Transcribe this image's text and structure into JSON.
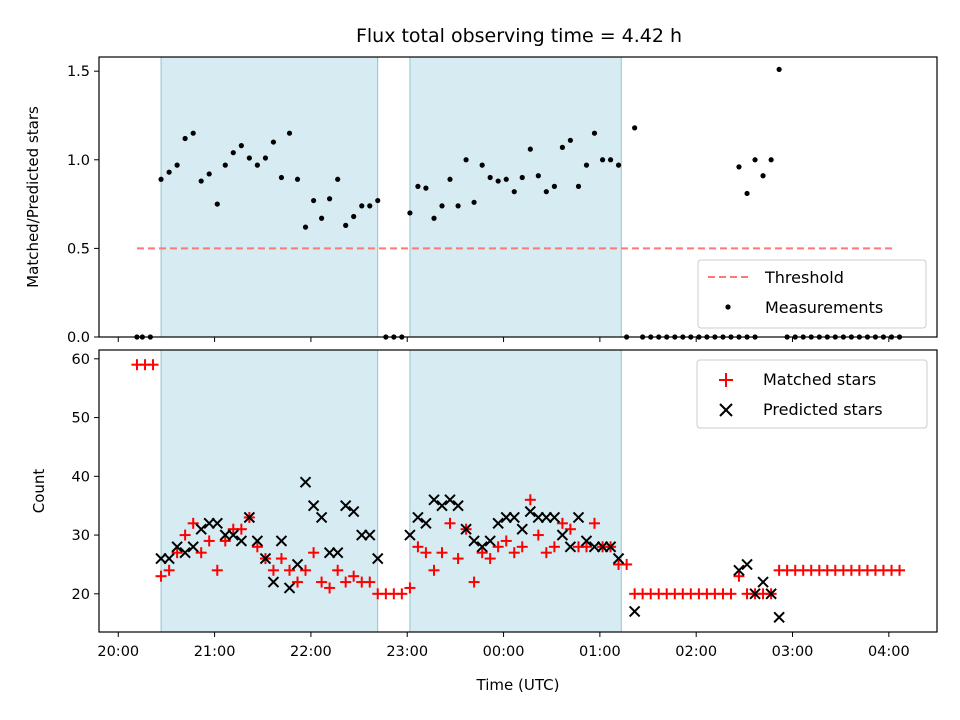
{
  "chart_data": [
    {
      "type": "scatter",
      "title": "Flux total observing time = 4.42 h",
      "ylabel": "Matched/Predicted stars",
      "xlabel": "",
      "ylim": [
        0,
        1.58
      ],
      "yticks": [
        "0.0",
        "0.5",
        "1.0",
        "1.5"
      ],
      "x_unit": "hours since 20:00 UTC",
      "shaded_intervals": [
        [
          0.444,
          2.694
        ],
        [
          3.028,
          5.222
        ]
      ],
      "threshold": {
        "name": "Threshold",
        "value": 0.5,
        "x_range": [
          0.194,
          8.056
        ],
        "color": "#ff7777"
      },
      "series": [
        {
          "name": "Measurements",
          "color": "#000000",
          "points": [
            [
              0.194,
              0.0
            ],
            [
              0.25,
              0.0
            ],
            [
              0.333,
              0.0
            ],
            [
              0.444,
              0.89
            ],
            [
              0.528,
              0.93
            ],
            [
              0.611,
              0.97
            ],
            [
              0.694,
              1.12
            ],
            [
              0.778,
              1.15
            ],
            [
              0.861,
              0.88
            ],
            [
              0.944,
              0.92
            ],
            [
              1.028,
              0.75
            ],
            [
              1.111,
              0.97
            ],
            [
              1.194,
              1.04
            ],
            [
              1.278,
              1.08
            ],
            [
              1.361,
              1.01
            ],
            [
              1.444,
              0.97
            ],
            [
              1.528,
              1.01
            ],
            [
              1.611,
              1.1
            ],
            [
              1.694,
              0.9
            ],
            [
              1.778,
              1.15
            ],
            [
              1.861,
              0.89
            ],
            [
              1.944,
              0.62
            ],
            [
              2.028,
              0.77
            ],
            [
              2.111,
              0.67
            ],
            [
              2.194,
              0.78
            ],
            [
              2.278,
              0.89
            ],
            [
              2.361,
              0.63
            ],
            [
              2.444,
              0.68
            ],
            [
              2.528,
              0.74
            ],
            [
              2.611,
              0.74
            ],
            [
              2.694,
              0.77
            ],
            [
              2.778,
              0.0
            ],
            [
              2.861,
              0.0
            ],
            [
              2.944,
              0.0
            ],
            [
              3.028,
              0.7
            ],
            [
              3.111,
              0.85
            ],
            [
              3.194,
              0.84
            ],
            [
              3.278,
              0.67
            ],
            [
              3.361,
              0.74
            ],
            [
              3.444,
              0.89
            ],
            [
              3.528,
              0.74
            ],
            [
              3.611,
              1.0
            ],
            [
              3.694,
              0.76
            ],
            [
              3.778,
              0.97
            ],
            [
              3.861,
              0.9
            ],
            [
              3.944,
              0.88
            ],
            [
              4.028,
              0.89
            ],
            [
              4.111,
              0.82
            ],
            [
              4.194,
              0.9
            ],
            [
              4.278,
              1.06
            ],
            [
              4.361,
              0.91
            ],
            [
              4.444,
              0.82
            ],
            [
              4.528,
              0.85
            ],
            [
              4.611,
              1.07
            ],
            [
              4.694,
              1.11
            ],
            [
              4.778,
              0.85
            ],
            [
              4.861,
              0.97
            ],
            [
              4.944,
              1.15
            ],
            [
              5.028,
              1.0
            ],
            [
              5.111,
              1.0
            ],
            [
              5.194,
              0.97
            ],
            [
              5.278,
              0.0
            ],
            [
              5.361,
              1.18
            ],
            [
              5.444,
              0.0
            ],
            [
              5.528,
              0.0
            ],
            [
              5.611,
              0.0
            ],
            [
              5.694,
              0.0
            ],
            [
              5.778,
              0.0
            ],
            [
              5.861,
              0.0
            ],
            [
              5.944,
              0.0
            ],
            [
              6.028,
              0.0
            ],
            [
              6.111,
              0.0
            ],
            [
              6.194,
              0.0
            ],
            [
              6.278,
              0.0
            ],
            [
              6.361,
              0.0
            ],
            [
              6.444,
              0.0
            ],
            [
              6.528,
              0.0
            ],
            [
              6.611,
              0.0
            ],
            [
              6.444,
              0.96
            ],
            [
              6.528,
              0.81
            ],
            [
              6.611,
              1.0
            ],
            [
              6.694,
              0.91
            ],
            [
              6.778,
              1.0
            ],
            [
              6.861,
              1.51
            ],
            [
              6.944,
              0.0
            ],
            [
              7.028,
              0.0
            ],
            [
              7.111,
              0.0
            ],
            [
              7.194,
              0.0
            ],
            [
              7.278,
              0.0
            ],
            [
              7.361,
              0.0
            ],
            [
              7.444,
              0.0
            ],
            [
              7.528,
              0.0
            ],
            [
              7.611,
              0.0
            ],
            [
              7.694,
              0.0
            ],
            [
              7.778,
              0.0
            ],
            [
              7.861,
              0.0
            ],
            [
              7.944,
              0.0
            ],
            [
              8.028,
              0.0
            ],
            [
              8.111,
              0.0
            ]
          ]
        }
      ],
      "legend": {
        "position": "lower right",
        "entries": [
          "Threshold",
          "Measurements"
        ]
      }
    },
    {
      "type": "scatter",
      "title": "",
      "ylabel": "Count",
      "xlabel": "Time (UTC)",
      "ylim": [
        13.5,
        61.5
      ],
      "yticks": [
        "20",
        "30",
        "40",
        "50",
        "60"
      ],
      "xlim": [
        -0.2,
        8.5
      ],
      "xticks": [
        {
          "x": 0,
          "label": "20:00"
        },
        {
          "x": 1,
          "label": "21:00"
        },
        {
          "x": 2,
          "label": "22:00"
        },
        {
          "x": 3,
          "label": "23:00"
        },
        {
          "x": 4,
          "label": "00:00"
        },
        {
          "x": 5,
          "label": "01:00"
        },
        {
          "x": 6,
          "label": "02:00"
        },
        {
          "x": 7,
          "label": "03:00"
        },
        {
          "x": 8,
          "label": "04:00"
        }
      ],
      "shaded_intervals": [
        [
          0.444,
          2.694
        ],
        [
          3.028,
          5.222
        ]
      ],
      "series": [
        {
          "name": "Matched stars",
          "color": "#ff0000",
          "marker": "plus",
          "points": [
            [
              0.194,
              59
            ],
            [
              0.278,
              59
            ],
            [
              0.361,
              59
            ],
            [
              0.444,
              23
            ],
            [
              0.528,
              24
            ],
            [
              0.611,
              27
            ],
            [
              0.694,
              30
            ],
            [
              0.778,
              32
            ],
            [
              0.861,
              27
            ],
            [
              0.944,
              29
            ],
            [
              1.028,
              24
            ],
            [
              1.111,
              29
            ],
            [
              1.194,
              31
            ],
            [
              1.278,
              31
            ],
            [
              1.361,
              33
            ],
            [
              1.444,
              28
            ],
            [
              1.528,
              26
            ],
            [
              1.611,
              24
            ],
            [
              1.694,
              26
            ],
            [
              1.778,
              24
            ],
            [
              1.861,
              22
            ],
            [
              1.944,
              24
            ],
            [
              2.028,
              27
            ],
            [
              2.111,
              22
            ],
            [
              2.194,
              21
            ],
            [
              2.278,
              24
            ],
            [
              2.361,
              22
            ],
            [
              2.444,
              23
            ],
            [
              2.528,
              22
            ],
            [
              2.611,
              22
            ],
            [
              2.694,
              20
            ],
            [
              2.778,
              20
            ],
            [
              2.861,
              20
            ],
            [
              2.944,
              20
            ],
            [
              3.028,
              21
            ],
            [
              3.111,
              28
            ],
            [
              3.194,
              27
            ],
            [
              3.278,
              24
            ],
            [
              3.361,
              27
            ],
            [
              3.444,
              32
            ],
            [
              3.528,
              26
            ],
            [
              3.611,
              31
            ],
            [
              3.694,
              22
            ],
            [
              3.778,
              27
            ],
            [
              3.861,
              26
            ],
            [
              3.944,
              28
            ],
            [
              4.028,
              29
            ],
            [
              4.111,
              27
            ],
            [
              4.194,
              28
            ],
            [
              4.278,
              36
            ],
            [
              4.361,
              30
            ],
            [
              4.444,
              27
            ],
            [
              4.528,
              28
            ],
            [
              4.611,
              32
            ],
            [
              4.694,
              31
            ],
            [
              4.778,
              28
            ],
            [
              4.861,
              28
            ],
            [
              4.944,
              32
            ],
            [
              5.028,
              28
            ],
            [
              5.111,
              28
            ],
            [
              5.194,
              25
            ],
            [
              5.278,
              25
            ],
            [
              5.361,
              20
            ],
            [
              5.444,
              20
            ],
            [
              5.528,
              20
            ],
            [
              5.611,
              20
            ],
            [
              5.694,
              20
            ],
            [
              5.778,
              20
            ],
            [
              5.861,
              20
            ],
            [
              5.944,
              20
            ],
            [
              6.028,
              20
            ],
            [
              6.111,
              20
            ],
            [
              6.194,
              20
            ],
            [
              6.278,
              20
            ],
            [
              6.361,
              20
            ],
            [
              6.444,
              23
            ],
            [
              6.528,
              20
            ],
            [
              6.611,
              20
            ],
            [
              6.694,
              20
            ],
            [
              6.778,
              20
            ],
            [
              6.861,
              24
            ],
            [
              6.944,
              24
            ],
            [
              7.028,
              24
            ],
            [
              7.111,
              24
            ],
            [
              7.194,
              24
            ],
            [
              7.278,
              24
            ],
            [
              7.361,
              24
            ],
            [
              7.444,
              24
            ],
            [
              7.528,
              24
            ],
            [
              7.611,
              24
            ],
            [
              7.694,
              24
            ],
            [
              7.778,
              24
            ],
            [
              7.861,
              24
            ],
            [
              7.944,
              24
            ],
            [
              8.028,
              24
            ],
            [
              8.111,
              24
            ]
          ]
        },
        {
          "name": "Predicted stars",
          "color": "#000000",
          "marker": "x",
          "points": [
            [
              0.444,
              26
            ],
            [
              0.528,
              26
            ],
            [
              0.611,
              28
            ],
            [
              0.694,
              27
            ],
            [
              0.778,
              28
            ],
            [
              0.861,
              31
            ],
            [
              0.944,
              32
            ],
            [
              1.028,
              32
            ],
            [
              1.111,
              30
            ],
            [
              1.194,
              30
            ],
            [
              1.278,
              29
            ],
            [
              1.361,
              33
            ],
            [
              1.444,
              29
            ],
            [
              1.528,
              26
            ],
            [
              1.611,
              22
            ],
            [
              1.694,
              29
            ],
            [
              1.778,
              21
            ],
            [
              1.861,
              25
            ],
            [
              1.944,
              39
            ],
            [
              2.028,
              35
            ],
            [
              2.111,
              33
            ],
            [
              2.194,
              27
            ],
            [
              2.278,
              27
            ],
            [
              2.361,
              35
            ],
            [
              2.444,
              34
            ],
            [
              2.528,
              30
            ],
            [
              2.611,
              30
            ],
            [
              2.694,
              26
            ],
            [
              3.028,
              30
            ],
            [
              3.111,
              33
            ],
            [
              3.194,
              32
            ],
            [
              3.278,
              36
            ],
            [
              3.361,
              35
            ],
            [
              3.444,
              36
            ],
            [
              3.528,
              35
            ],
            [
              3.611,
              31
            ],
            [
              3.694,
              29
            ],
            [
              3.778,
              28
            ],
            [
              3.861,
              29
            ],
            [
              3.944,
              32
            ],
            [
              4.028,
              33
            ],
            [
              4.111,
              33
            ],
            [
              4.194,
              31
            ],
            [
              4.278,
              34
            ],
            [
              4.361,
              33
            ],
            [
              4.444,
              33
            ],
            [
              4.528,
              33
            ],
            [
              4.611,
              30
            ],
            [
              4.694,
              28
            ],
            [
              4.778,
              33
            ],
            [
              4.861,
              29
            ],
            [
              4.944,
              28
            ],
            [
              5.028,
              28
            ],
            [
              5.111,
              28
            ],
            [
              5.194,
              26
            ],
            [
              5.361,
              17
            ],
            [
              6.444,
              24
            ],
            [
              6.528,
              25
            ],
            [
              6.611,
              20
            ],
            [
              6.694,
              22
            ],
            [
              6.778,
              20
            ],
            [
              6.861,
              16
            ]
          ]
        }
      ],
      "legend": {
        "position": "upper right",
        "entries": [
          "Matched stars",
          "Predicted stars"
        ]
      }
    }
  ]
}
